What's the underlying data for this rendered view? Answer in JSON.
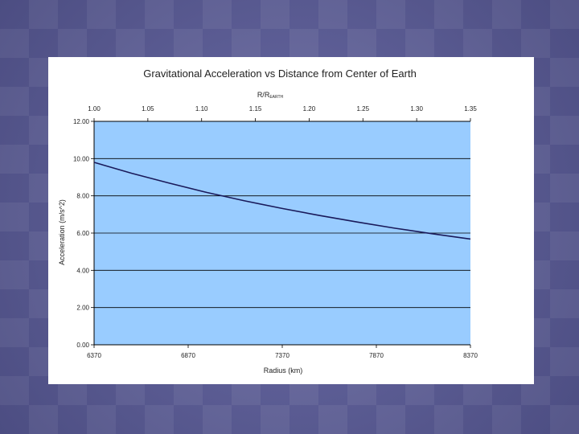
{
  "chart_data": {
    "type": "line",
    "title": "Gravitational Acceleration vs Distance from Center of Earth",
    "xlabel": "Radius (km)",
    "x2label": "R/R",
    "x2label_sub": "EARTH",
    "ylabel": "Acceleration (m/s^2)",
    "xlim": [
      6370,
      8370
    ],
    "ylim": [
      0,
      12
    ],
    "x_ticks": [
      6370,
      6870,
      7370,
      7870,
      8370
    ],
    "x_tick_labels": [
      "6370",
      "6870",
      "7370",
      "7870",
      "8370"
    ],
    "y_ticks": [
      0,
      2,
      4,
      6,
      8,
      10,
      12
    ],
    "y_tick_labels": [
      "0.00",
      "2.00",
      "4.00",
      "6.00",
      "8.00",
      "10.00",
      "12.00"
    ],
    "x2_ticks": [
      1.0,
      1.05,
      1.1,
      1.15,
      1.2,
      1.25,
      1.3,
      1.35
    ],
    "x2_tick_labels": [
      "1.00",
      "1.05",
      "1.10",
      "1.15",
      "1.20",
      "1.25",
      "1.30",
      "1.35"
    ],
    "grid": true,
    "colors": {
      "plot_background": "#99ccff",
      "line": "#1a1a5a",
      "grid": "#000000"
    },
    "series": [
      {
        "x": [
          6370,
          6570,
          6770,
          6970,
          7170,
          7370,
          7570,
          7770,
          7970,
          8170,
          8370
        ],
        "values": [
          9.8,
          9.21,
          8.68,
          8.18,
          7.73,
          7.32,
          6.94,
          6.59,
          6.26,
          5.96,
          5.68
        ]
      }
    ]
  }
}
